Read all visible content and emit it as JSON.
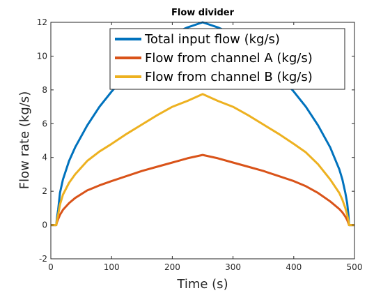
{
  "chart_data": {
    "type": "line",
    "title": "Flow divider",
    "xlabel": "Time (s)",
    "ylabel": "Flow rate (kg/s)",
    "xlim": [
      0,
      500
    ],
    "ylim": [
      -2,
      12
    ],
    "xticks": [
      0,
      100,
      200,
      300,
      400,
      500
    ],
    "yticks": [
      -2,
      0,
      2,
      4,
      6,
      8,
      10,
      12
    ],
    "grid": false,
    "legend_position": "top-right",
    "series": [
      {
        "name": "Total input flow (kg/s)",
        "color": "#0072BD",
        "x": [
          0,
          5,
          9,
          10,
          12,
          15,
          20,
          30,
          40,
          60,
          80,
          100,
          125,
          150,
          175,
          200,
          225,
          250,
          275,
          300,
          325,
          350,
          375,
          400,
          420,
          440,
          460,
          475,
          480,
          485,
          488,
          490,
          491,
          495,
          500
        ],
        "y": [
          0,
          0,
          0,
          0.4,
          0.9,
          1.9,
          2.7,
          3.8,
          4.6,
          5.9,
          7.0,
          7.9,
          8.9,
          9.8,
          10.6,
          11.3,
          11.7,
          12.0,
          11.7,
          11.3,
          10.6,
          9.8,
          8.9,
          7.9,
          7.0,
          5.9,
          4.6,
          3.3,
          2.7,
          1.9,
          1.3,
          0.6,
          0,
          0,
          0
        ]
      },
      {
        "name": "Flow from channel A (kg/s)",
        "color": "#D95319",
        "x": [
          0,
          5,
          9,
          10,
          12,
          15,
          20,
          30,
          40,
          60,
          80,
          100,
          125,
          150,
          175,
          200,
          225,
          250,
          275,
          300,
          325,
          350,
          375,
          400,
          420,
          440,
          460,
          475,
          480,
          485,
          488,
          490,
          491,
          495,
          500
        ],
        "y": [
          0,
          0,
          0,
          0.15,
          0.35,
          0.6,
          0.9,
          1.3,
          1.6,
          2.05,
          2.35,
          2.6,
          2.9,
          3.2,
          3.45,
          3.7,
          3.95,
          4.15,
          3.95,
          3.7,
          3.45,
          3.2,
          2.9,
          2.6,
          2.3,
          1.9,
          1.4,
          0.95,
          0.75,
          0.5,
          0.3,
          0.1,
          0,
          0,
          0
        ]
      },
      {
        "name": "Flow from channel B (kg/s)",
        "color": "#EDB120",
        "x": [
          0,
          5,
          9,
          10,
          12,
          15,
          20,
          30,
          40,
          60,
          80,
          100,
          125,
          150,
          175,
          200,
          225,
          250,
          275,
          300,
          325,
          350,
          375,
          400,
          420,
          440,
          460,
          475,
          480,
          485,
          488,
          490,
          491,
          495,
          500
        ],
        "y": [
          0,
          0,
          0,
          0.25,
          0.6,
          1.2,
          1.8,
          2.5,
          3.0,
          3.8,
          4.35,
          4.8,
          5.4,
          5.95,
          6.5,
          7.0,
          7.35,
          7.75,
          7.35,
          7.0,
          6.5,
          5.95,
          5.4,
          4.8,
          4.3,
          3.6,
          2.7,
          1.9,
          1.5,
          1.0,
          0.6,
          0.25,
          0,
          0,
          0
        ]
      }
    ]
  }
}
